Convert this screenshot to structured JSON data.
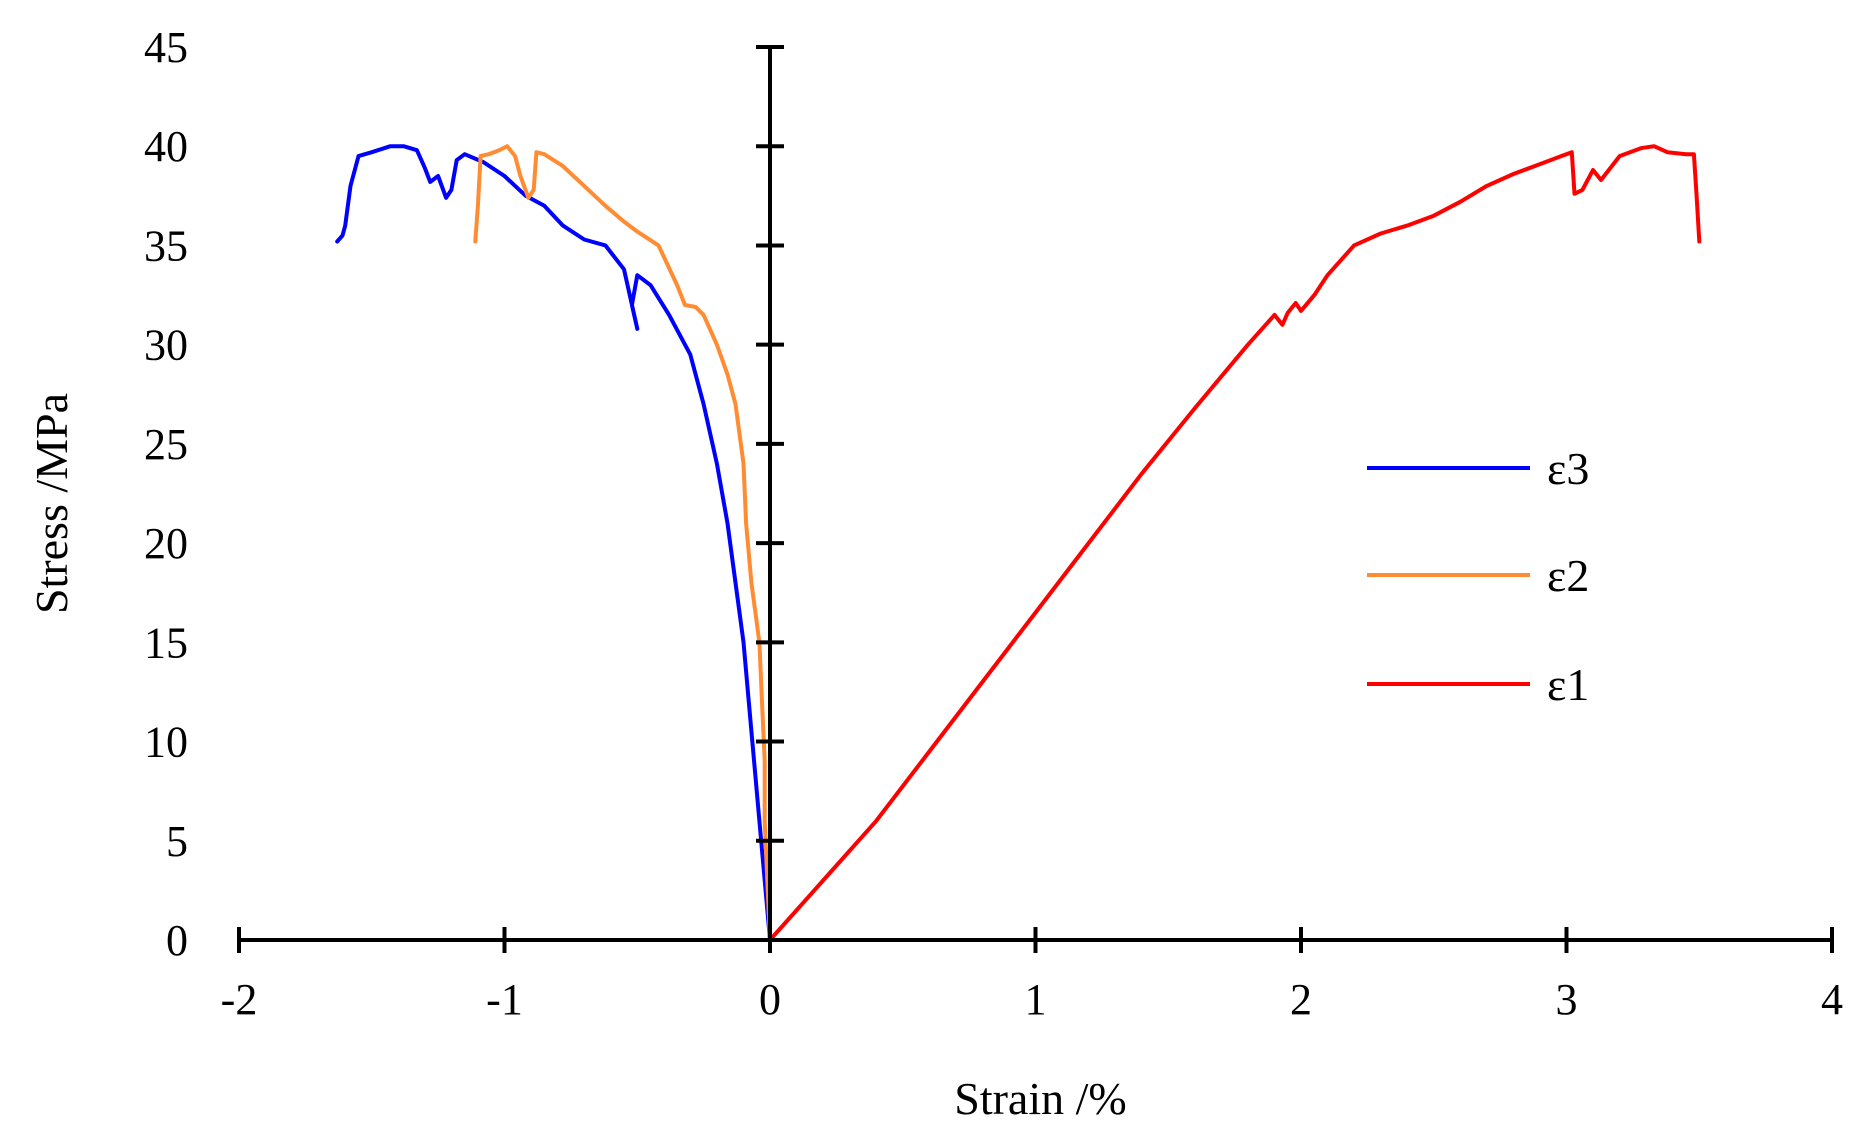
{
  "chart_data": {
    "type": "line",
    "title": "",
    "xlabel": "Strain /%",
    "ylabel": "Stress /MPa",
    "xlim": [
      -2,
      4
    ],
    "ylim": [
      0,
      45
    ],
    "xticks": [
      -2,
      -1,
      0,
      1,
      2,
      3,
      4
    ],
    "yticks": [
      0,
      5,
      10,
      15,
      20,
      25,
      30,
      35,
      40,
      45
    ],
    "grid": false,
    "legend_position": "right",
    "series": [
      {
        "name": "ε3",
        "color": "#0000ff",
        "points": [
          [
            0,
            0
          ],
          [
            -0.02,
            3
          ],
          [
            -0.04,
            6
          ],
          [
            -0.06,
            9
          ],
          [
            -0.08,
            12
          ],
          [
            -0.1,
            15
          ],
          [
            -0.13,
            18
          ],
          [
            -0.16,
            21
          ],
          [
            -0.2,
            24
          ],
          [
            -0.25,
            27
          ],
          [
            -0.3,
            29.5
          ],
          [
            -0.38,
            31.5
          ],
          [
            -0.45,
            33
          ],
          [
            -0.5,
            33.5
          ],
          [
            -0.52,
            32
          ],
          [
            -0.5,
            30.8
          ],
          [
            -0.55,
            33.8
          ],
          [
            -0.62,
            35
          ],
          [
            -0.7,
            35.3
          ],
          [
            -0.78,
            36
          ],
          [
            -0.85,
            37
          ],
          [
            -0.92,
            37.5
          ],
          [
            -1.0,
            38.5
          ],
          [
            -1.08,
            39.2
          ],
          [
            -1.15,
            39.6
          ],
          [
            -1.18,
            39.3
          ],
          [
            -1.2,
            37.8
          ],
          [
            -1.22,
            37.4
          ],
          [
            -1.25,
            38.5
          ],
          [
            -1.28,
            38.2
          ],
          [
            -1.3,
            38.9
          ],
          [
            -1.33,
            39.8
          ],
          [
            -1.38,
            40
          ],
          [
            -1.43,
            40
          ],
          [
            -1.5,
            39.7
          ],
          [
            -1.55,
            39.5
          ],
          [
            -1.58,
            38
          ],
          [
            -1.6,
            36
          ],
          [
            -1.61,
            35.5
          ],
          [
            -1.63,
            35.2
          ]
        ]
      },
      {
        "name": "ε2",
        "color": "#ff8c33",
        "points": [
          [
            0,
            0
          ],
          [
            -0.01,
            3
          ],
          [
            -0.02,
            6
          ],
          [
            -0.02,
            9
          ],
          [
            -0.03,
            12
          ],
          [
            -0.04,
            15
          ],
          [
            -0.07,
            18
          ],
          [
            -0.09,
            21
          ],
          [
            -0.1,
            24
          ],
          [
            -0.13,
            27
          ],
          [
            -0.16,
            28.5
          ],
          [
            -0.2,
            30
          ],
          [
            -0.25,
            31.5
          ],
          [
            -0.28,
            31.9
          ],
          [
            -0.32,
            32
          ],
          [
            -0.35,
            33
          ],
          [
            -0.42,
            35
          ],
          [
            -0.5,
            35.7
          ],
          [
            -0.55,
            36.2
          ],
          [
            -0.62,
            37
          ],
          [
            -0.7,
            38
          ],
          [
            -0.78,
            39
          ],
          [
            -0.85,
            39.6
          ],
          [
            -0.88,
            39.7
          ],
          [
            -0.89,
            37.8
          ],
          [
            -0.91,
            37.4
          ],
          [
            -0.94,
            38.5
          ],
          [
            -0.96,
            39.5
          ],
          [
            -0.99,
            40
          ],
          [
            -1.02,
            39.8
          ],
          [
            -1.06,
            39.6
          ],
          [
            -1.09,
            39.5
          ],
          [
            -1.1,
            37
          ],
          [
            -1.11,
            35.2
          ]
        ]
      },
      {
        "name": "ε1",
        "color": "#ff0000",
        "points": [
          [
            0,
            0
          ],
          [
            0.2,
            3
          ],
          [
            0.4,
            6
          ],
          [
            0.6,
            9.5
          ],
          [
            0.8,
            13
          ],
          [
            1.0,
            16.5
          ],
          [
            1.2,
            20
          ],
          [
            1.4,
            23.5
          ],
          [
            1.6,
            26.8
          ],
          [
            1.8,
            30
          ],
          [
            1.9,
            31.5
          ],
          [
            1.93,
            31
          ],
          [
            1.95,
            31.6
          ],
          [
            1.98,
            32.1
          ],
          [
            2.0,
            31.7
          ],
          [
            2.05,
            32.5
          ],
          [
            2.1,
            33.5
          ],
          [
            2.2,
            35
          ],
          [
            2.3,
            35.6
          ],
          [
            2.4,
            36
          ],
          [
            2.5,
            36.5
          ],
          [
            2.6,
            37.2
          ],
          [
            2.7,
            38
          ],
          [
            2.8,
            38.6
          ],
          [
            2.9,
            39.1
          ],
          [
            2.98,
            39.5
          ],
          [
            3.02,
            39.7
          ],
          [
            3.03,
            37.6
          ],
          [
            3.06,
            37.8
          ],
          [
            3.08,
            38.3
          ],
          [
            3.1,
            38.8
          ],
          [
            3.13,
            38.3
          ],
          [
            3.2,
            39.5
          ],
          [
            3.28,
            39.9
          ],
          [
            3.33,
            40
          ],
          [
            3.38,
            39.7
          ],
          [
            3.45,
            39.6
          ],
          [
            3.48,
            39.6
          ],
          [
            3.49,
            37.5
          ],
          [
            3.5,
            35.2
          ]
        ]
      }
    ]
  }
}
